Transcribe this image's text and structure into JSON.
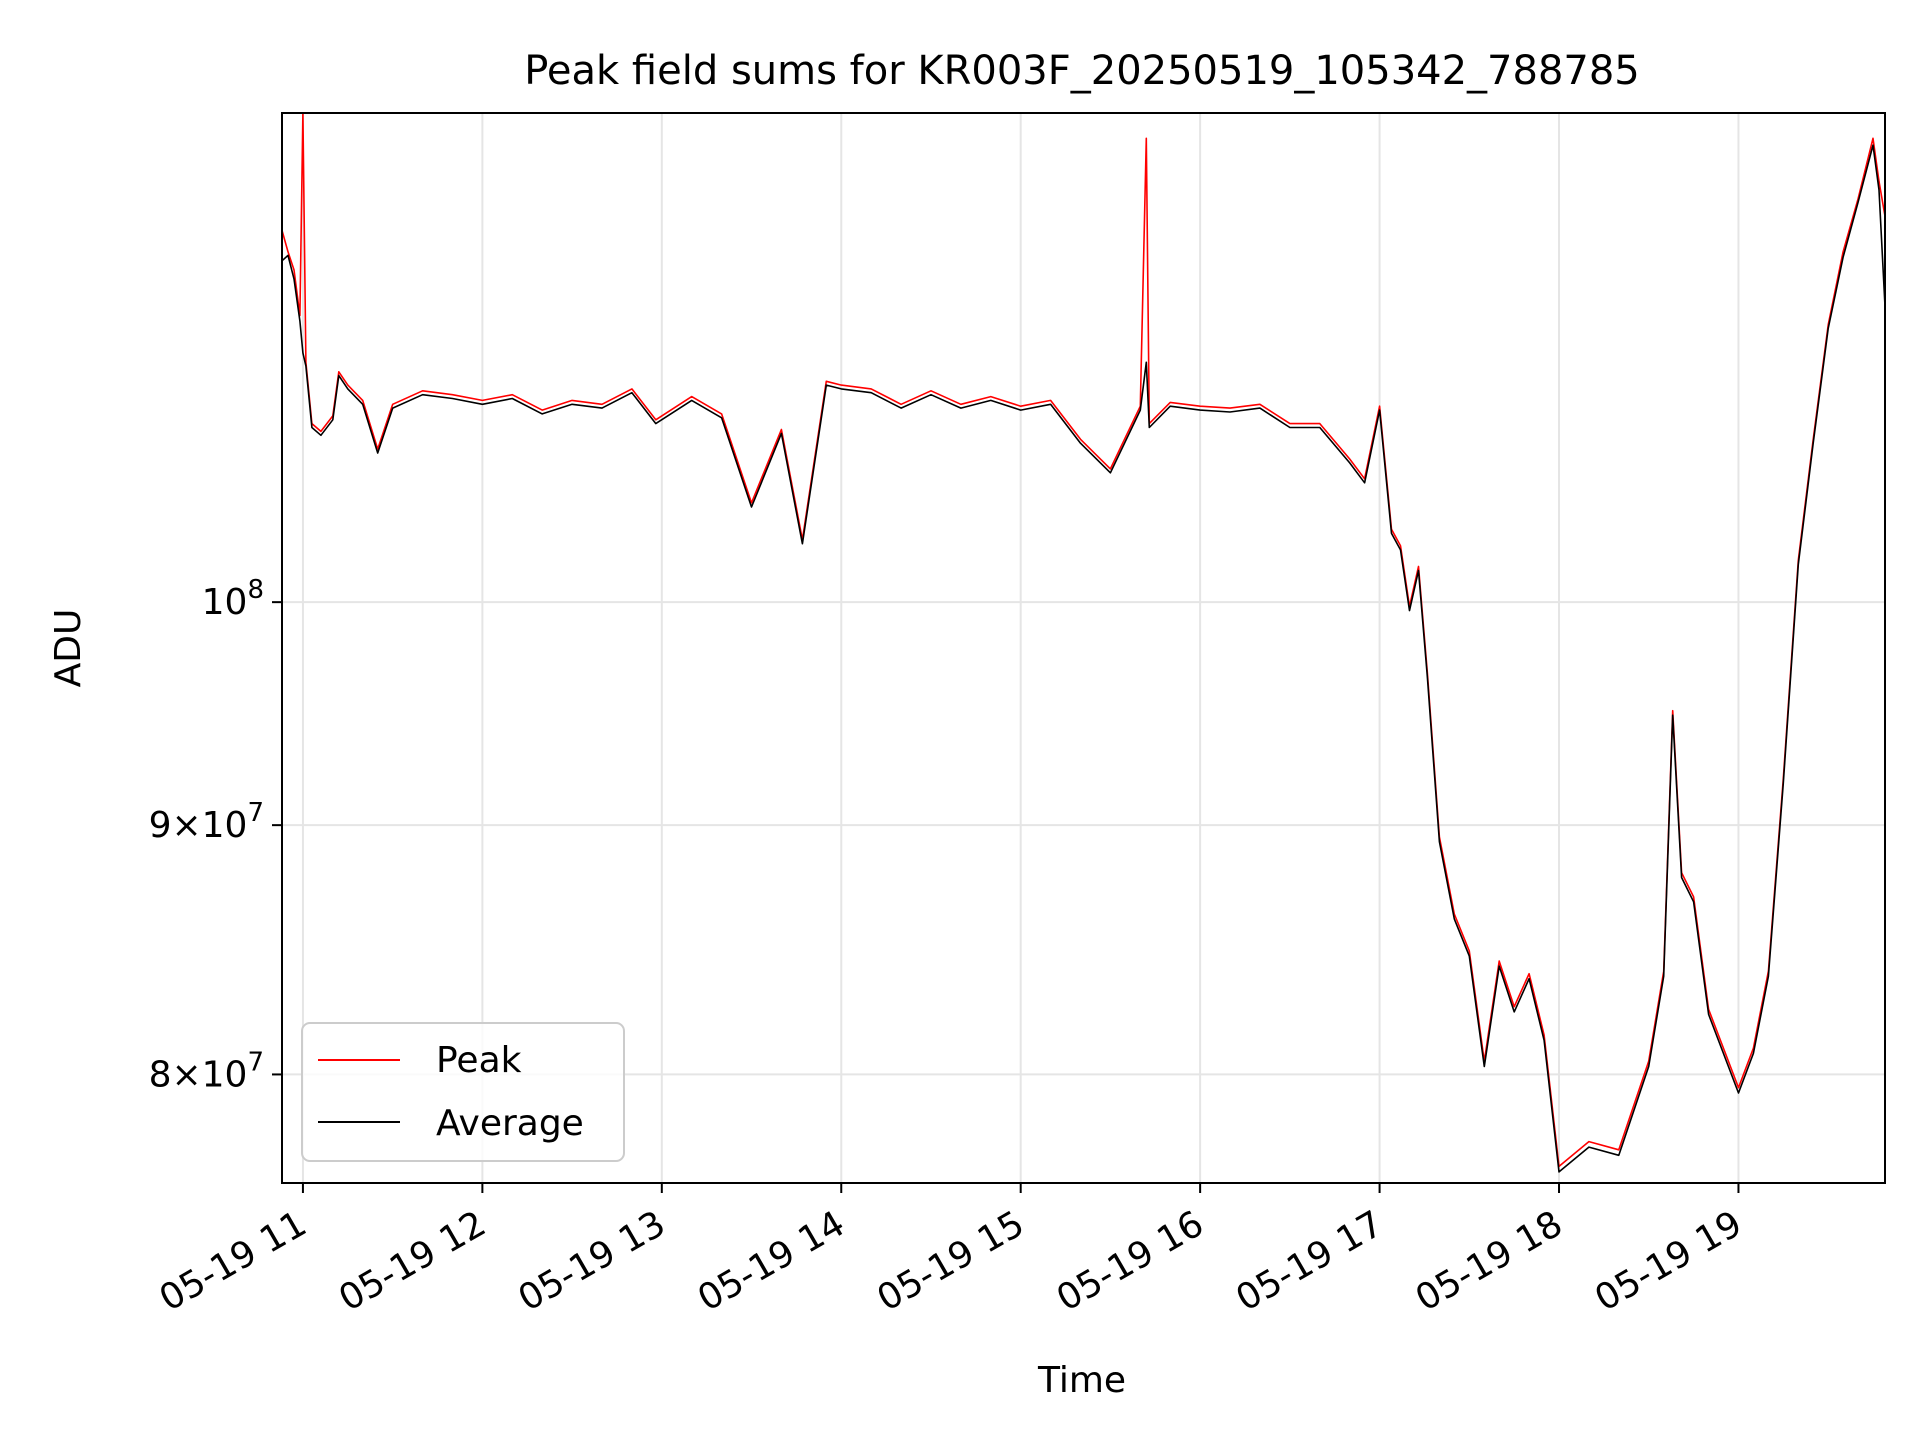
{
  "chart_data": {
    "type": "line",
    "title": "Peak field sums for KR003F_20250519_105342_788785",
    "xlabel": "Time",
    "ylabel": "ADU",
    "y_scale": "log",
    "ylim": [
      76000000,
      126000000
    ],
    "xlim": [
      "05-19 10:53",
      "05-19 19:49"
    ],
    "grid": true,
    "legend_position": "lower-left",
    "x_ticks": [
      {
        "x": "05-19 11:00",
        "label": "05-19 11"
      },
      {
        "x": "05-19 12:00",
        "label": "05-19 12"
      },
      {
        "x": "05-19 13:00",
        "label": "05-19 13"
      },
      {
        "x": "05-19 14:00",
        "label": "05-19 14"
      },
      {
        "x": "05-19 15:00",
        "label": "05-19 15"
      },
      {
        "x": "05-19 16:00",
        "label": "05-19 16"
      },
      {
        "x": "05-19 17:00",
        "label": "05-19 17"
      },
      {
        "x": "05-19 18:00",
        "label": "05-19 18"
      },
      {
        "x": "05-19 19:00",
        "label": "05-19 19"
      }
    ],
    "y_ticks": [
      {
        "y": 80000000,
        "base": "8",
        "exp": "7"
      },
      {
        "y": 90000000,
        "base": "9",
        "exp": "7"
      },
      {
        "y": 100000000,
        "base": "",
        "exp": "8"
      }
    ],
    "series": [
      {
        "name": "Peak",
        "color": "#ff0000",
        "x": [
          "05-19 10:53",
          "05-19 10:55",
          "05-19 10:57",
          "05-19 10:59",
          "05-19 11:00",
          "05-19 11:01",
          "05-19 11:03",
          "05-19 11:06",
          "05-19 11:10",
          "05-19 11:12",
          "05-19 11:15",
          "05-19 11:20",
          "05-19 11:25",
          "05-19 11:30",
          "05-19 11:40",
          "05-19 11:50",
          "05-19 12:00",
          "05-19 12:10",
          "05-19 12:20",
          "05-19 12:30",
          "05-19 12:40",
          "05-19 12:50",
          "05-19 12:58",
          "05-19 13:10",
          "05-19 13:20",
          "05-19 13:30",
          "05-19 13:40",
          "05-19 13:47",
          "05-19 13:55",
          "05-19 14:00",
          "05-19 14:10",
          "05-19 14:20",
          "05-19 14:30",
          "05-19 14:40",
          "05-19 14:50",
          "05-19 15:00",
          "05-19 15:10",
          "05-19 15:20",
          "05-19 15:30",
          "05-19 15:40",
          "05-19 15:42",
          "05-19 15:43",
          "05-19 15:50",
          "05-19 16:00",
          "05-19 16:10",
          "05-19 16:20",
          "05-19 16:30",
          "05-19 16:40",
          "05-19 16:50",
          "05-19 16:55",
          "05-19 17:00",
          "05-19 17:04",
          "05-19 17:07",
          "05-19 17:10",
          "05-19 17:13",
          "05-19 17:16",
          "05-19 17:20",
          "05-19 17:25",
          "05-19 17:30",
          "05-19 17:35",
          "05-19 17:40",
          "05-19 17:45",
          "05-19 17:50",
          "05-19 17:55",
          "05-19 18:00",
          "05-19 18:10",
          "05-19 18:20",
          "05-19 18:30",
          "05-19 18:35",
          "05-19 18:38",
          "05-19 18:41",
          "05-19 18:45",
          "05-19 18:50",
          "05-19 19:00",
          "05-19 19:05",
          "05-19 19:10",
          "05-19 19:15",
          "05-19 19:20",
          "05-19 19:25",
          "05-19 19:30",
          "05-19 19:35",
          "05-19 19:40",
          "05-19 19:45",
          "05-19 19:47",
          "05-19 19:49"
        ],
        "y": [
          119200000,
          118000000,
          117000000,
          114500000,
          126000000,
          112000000,
          108800000,
          108400000,
          109200000,
          111500000,
          110800000,
          110000000,
          107500000,
          109800000,
          110500000,
          110300000,
          110000000,
          110300000,
          109500000,
          110000000,
          109800000,
          110600000,
          109000000,
          110200000,
          109300000,
          104800000,
          108500000,
          103000000,
          111000000,
          110800000,
          110600000,
          109800000,
          110500000,
          109800000,
          110200000,
          109700000,
          110000000,
          108000000,
          106500000,
          109700000,
          124500000,
          108800000,
          109900000,
          109700000,
          109600000,
          109800000,
          108800000,
          108800000,
          107000000,
          106000000,
          109700000,
          103500000,
          102700000,
          99800000,
          101700000,
          96700000,
          89500000,
          86300000,
          84800000,
          80500000,
          84400000,
          82600000,
          83900000,
          81500000,
          76600000,
          77500000,
          77200000,
          80500000,
          84000000,
          95000000,
          88000000,
          87000000,
          82500000,
          79500000,
          81000000,
          84000000,
          92000000,
          102000000,
          108000000,
          114000000,
          118000000,
          121000000,
          124500000,
          122000000,
          120000000
        ]
      },
      {
        "name": "Average",
        "color": "#000000",
        "x": [
          "05-19 10:53",
          "05-19 10:55",
          "05-19 10:57",
          "05-19 10:59",
          "05-19 11:00",
          "05-19 11:01",
          "05-19 11:03",
          "05-19 11:06",
          "05-19 11:10",
          "05-19 11:12",
          "05-19 11:15",
          "05-19 11:20",
          "05-19 11:25",
          "05-19 11:30",
          "05-19 11:40",
          "05-19 11:50",
          "05-19 12:00",
          "05-19 12:10",
          "05-19 12:20",
          "05-19 12:30",
          "05-19 12:40",
          "05-19 12:50",
          "05-19 12:58",
          "05-19 13:10",
          "05-19 13:20",
          "05-19 13:30",
          "05-19 13:40",
          "05-19 13:47",
          "05-19 13:55",
          "05-19 14:00",
          "05-19 14:10",
          "05-19 14:20",
          "05-19 14:30",
          "05-19 14:40",
          "05-19 14:50",
          "05-19 15:00",
          "05-19 15:10",
          "05-19 15:20",
          "05-19 15:30",
          "05-19 15:40",
          "05-19 15:42",
          "05-19 15:43",
          "05-19 15:50",
          "05-19 16:00",
          "05-19 16:10",
          "05-19 16:20",
          "05-19 16:30",
          "05-19 16:40",
          "05-19 16:50",
          "05-19 16:55",
          "05-19 17:00",
          "05-19 17:04",
          "05-19 17:07",
          "05-19 17:10",
          "05-19 17:13",
          "05-19 17:16",
          "05-19 17:20",
          "05-19 17:25",
          "05-19 17:30",
          "05-19 17:35",
          "05-19 17:40",
          "05-19 17:45",
          "05-19 17:50",
          "05-19 17:55",
          "05-19 18:00",
          "05-19 18:10",
          "05-19 18:20",
          "05-19 18:30",
          "05-19 18:35",
          "05-19 18:38",
          "05-19 18:41",
          "05-19 18:45",
          "05-19 18:50",
          "05-19 19:00",
          "05-19 19:05",
          "05-19 19:10",
          "05-19 19:15",
          "05-19 19:20",
          "05-19 19:25",
          "05-19 19:30",
          "05-19 19:35",
          "05-19 19:40",
          "05-19 19:45",
          "05-19 19:47",
          "05-19 19:49"
        ],
        "y": [
          117500000,
          117800000,
          116500000,
          114200000,
          112500000,
          111800000,
          108600000,
          108200000,
          109000000,
          111300000,
          110600000,
          109800000,
          107300000,
          109600000,
          110300000,
          110100000,
          109800000,
          110100000,
          109300000,
          109800000,
          109600000,
          110400000,
          108800000,
          110000000,
          109100000,
          104600000,
          108300000,
          102800000,
          110800000,
          110600000,
          110400000,
          109600000,
          110300000,
          109600000,
          110000000,
          109500000,
          109800000,
          107800000,
          106300000,
          109500000,
          112000000,
          108600000,
          109700000,
          109500000,
          109400000,
          109600000,
          108600000,
          108600000,
          106800000,
          105800000,
          109500000,
          103300000,
          102500000,
          99600000,
          101500000,
          96500000,
          89300000,
          86100000,
          84600000,
          80300000,
          84200000,
          82400000,
          83700000,
          81300000,
          76400000,
          77300000,
          77000000,
          80300000,
          83800000,
          94800000,
          87800000,
          86800000,
          82300000,
          79300000,
          80800000,
          83800000,
          91800000,
          101800000,
          107800000,
          113800000,
          117700000,
          120800000,
          124100000,
          121500000,
          115000000
        ]
      }
    ]
  },
  "legend": {
    "items": [
      {
        "label": "Peak",
        "color": "#ff0000"
      },
      {
        "label": "Average",
        "color": "#000000"
      }
    ]
  }
}
